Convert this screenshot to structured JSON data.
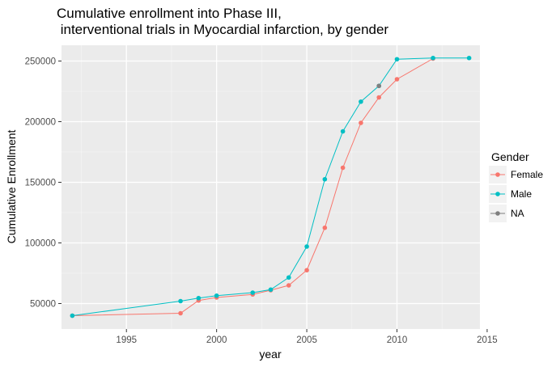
{
  "chart_data": {
    "type": "line",
    "title_lines": [
      "Cumulative enrollment into Phase III,",
      " interventional trials in Myocardial infarction, by gender"
    ],
    "xlabel": "year",
    "ylabel": "Cumulative Enrollment",
    "xlim": [
      1991.4,
      2014.6
    ],
    "ylim": [
      29000,
      263000
    ],
    "x_ticks": [
      1995,
      2000,
      2005,
      2010,
      2015
    ],
    "x_tick_labels": [
      "1995",
      "2000",
      "2005",
      "2010",
      "2015"
    ],
    "y_ticks": [
      50000,
      100000,
      150000,
      200000,
      250000
    ],
    "y_tick_labels": [
      "50000",
      "100000",
      "150000",
      "200000",
      "250000"
    ],
    "grid": true,
    "legend": {
      "title": "Gender",
      "position": "right",
      "entries": [
        "Female",
        "Male",
        "NA"
      ]
    },
    "series": [
      {
        "name": "Female",
        "color": "#F8766D",
        "x": [
          1992,
          1998,
          1999,
          2000,
          2002,
          2003,
          2004,
          2005,
          2006,
          2007,
          2008,
          2009,
          2010,
          2012
        ],
        "y": [
          40000,
          42000,
          52500,
          55000,
          57500,
          61000,
          65000,
          77500,
          112500,
          162000,
          199000,
          220000,
          235000,
          252000
        ]
      },
      {
        "name": "Male",
        "color": "#00BFC4",
        "x": [
          1992,
          1998,
          1999,
          2000,
          2002,
          2003,
          2004,
          2005,
          2006,
          2007,
          2008,
          2009,
          2010,
          2012,
          2014
        ],
        "y": [
          40000,
          52000,
          54500,
          56500,
          59000,
          61500,
          71500,
          97000,
          152500,
          192000,
          216500,
          229500,
          251500,
          252500,
          252500
        ]
      },
      {
        "name": "NA",
        "color": "#7F7F7F",
        "x": [
          2009
        ],
        "y": [
          229500
        ]
      }
    ]
  }
}
